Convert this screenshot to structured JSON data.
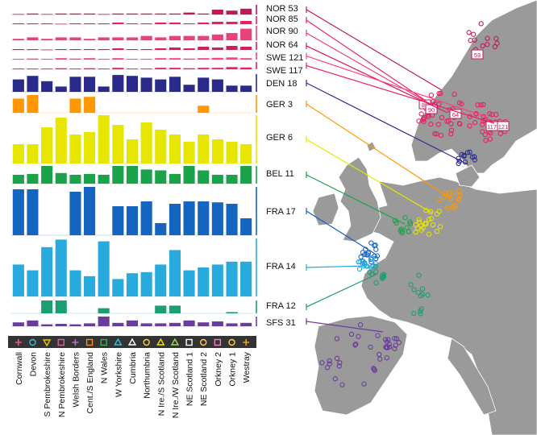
{
  "chart_data": {
    "type": "bar",
    "categories": [
      "Cornwall",
      "Devon",
      "S Pembrokeshire",
      "N Pembrokeshire",
      "Welsh Borders",
      "Cent./S England",
      "N Wales",
      "W Yorkshire",
      "Cumbria",
      "Northumbria",
      "N Ire./S Scotland",
      "N Ire./W Scotland",
      "NE Scotland 1",
      "NE Scotland 2",
      "Orkney 2",
      "Orkney 1",
      "Westray"
    ],
    "region_markers": [
      {
        "symbol": "+",
        "color": "#e0609a"
      },
      {
        "symbol": "o",
        "color": "#2ec4e0"
      },
      {
        "symbol": "▽",
        "color": "#f2c400"
      },
      {
        "symbol": "□",
        "color": "#e0609a"
      },
      {
        "symbol": "+",
        "color": "#b56fd6"
      },
      {
        "symbol": "□",
        "color": "#ff8c1a"
      },
      {
        "symbol": "□",
        "color": "#35b24a"
      },
      {
        "symbol": "△",
        "color": "#2ec4e0"
      },
      {
        "symbol": "△",
        "color": "#ffffff"
      },
      {
        "symbol": "o",
        "color": "#ffd24d"
      },
      {
        "symbol": "△",
        "color": "#ffe000"
      },
      {
        "symbol": "△",
        "color": "#9be04a"
      },
      {
        "symbol": "□",
        "color": "#ffffff"
      },
      {
        "symbol": "o",
        "color": "#ffd24d"
      },
      {
        "symbol": "□",
        "color": "#ff7ac8"
      },
      {
        "symbol": "o",
        "color": "#ffd24d"
      },
      {
        "symbol": "+",
        "color": "#ff9a1a"
      }
    ],
    "series": [
      {
        "name": "NOR 53",
        "color": "#c2185b",
        "values": [
          0.05,
          0.1,
          0.05,
          0.1,
          0.1,
          0.1,
          0.05,
          0.1,
          0.1,
          0.1,
          0.1,
          0.1,
          0.2,
          0.1,
          0.5,
          0.4,
          0.6
        ]
      },
      {
        "name": "NOR 85",
        "color": "#e91e63",
        "values": [
          0.1,
          0.1,
          0.1,
          0.05,
          0.1,
          0.1,
          0.1,
          0.2,
          0.1,
          0.1,
          0.2,
          0.2,
          0.1,
          0.2,
          0.3,
          0.3,
          0.4
        ]
      },
      {
        "name": "NOR 90",
        "color": "#ec407a",
        "values": [
          0.1,
          0.2,
          0.1,
          0.2,
          0.2,
          0.1,
          0.2,
          0.2,
          0.2,
          0.3,
          0.2,
          0.3,
          0.3,
          0.3,
          0.4,
          0.5,
          0.8
        ]
      },
      {
        "name": "NOR 64",
        "color": "#d81b60",
        "values": [
          0.1,
          0.1,
          0.05,
          0.1,
          0.1,
          0.1,
          0.1,
          0.2,
          0.1,
          0.1,
          0.2,
          0.3,
          0.2,
          0.4,
          0.3,
          0.5,
          0.4
        ]
      },
      {
        "name": "SWE 121",
        "color": "#ff4081",
        "values": [
          0.1,
          0.15,
          0.1,
          0.2,
          0.15,
          0.2,
          0.1,
          0.2,
          0.1,
          0.1,
          0.2,
          0.2,
          0.15,
          0.2,
          0.25,
          0.3,
          0.2
        ]
      },
      {
        "name": "SWE 117",
        "color": "#e91e63",
        "values": [
          0.1,
          0.1,
          0.1,
          0.15,
          0.1,
          0.15,
          0.1,
          0.2,
          0.1,
          0.1,
          0.2,
          0.2,
          0.15,
          0.2,
          0.2,
          0.3,
          0.25
        ]
      },
      {
        "name": "DEN 18",
        "color": "#2a2a8c",
        "values": [
          0.7,
          0.9,
          0.6,
          0.3,
          0.85,
          0.85,
          0.3,
          0.95,
          0.9,
          0.8,
          0.7,
          0.85,
          0.4,
          0.8,
          0.7,
          0.35,
          0.35
        ]
      },
      {
        "name": "GER 3",
        "color": "#ff9800",
        "values": [
          0.8,
          1.0,
          0,
          0,
          0.8,
          0.9,
          0,
          0,
          0,
          0,
          0,
          0,
          0,
          0.4,
          0,
          0,
          0
        ]
      },
      {
        "name": "GER 6",
        "color": "#e6e600",
        "values": [
          0.4,
          0.4,
          0.75,
          0.95,
          0.6,
          0.65,
          1.0,
          0.8,
          0.5,
          0.85,
          0.7,
          0.6,
          0.45,
          0.6,
          0.5,
          0.45,
          0.4
        ]
      },
      {
        "name": "BEL 11",
        "color": "#1aa34a",
        "values": [
          0.5,
          0.55,
          1.0,
          0.6,
          0.5,
          0.55,
          0.5,
          1.0,
          1.0,
          0.8,
          0.75,
          0.55,
          1.0,
          0.75,
          0.5,
          0.5,
          1.0
        ]
      },
      {
        "name": "FRA 17",
        "color": "#1565c0",
        "values": [
          0.95,
          0.95,
          0,
          0,
          0.9,
          1.0,
          0,
          0.6,
          0.6,
          0.7,
          0.25,
          0.65,
          0.7,
          0.7,
          0.68,
          0.65,
          0.35
        ]
      },
      {
        "name": "FRA 14",
        "color": "#29aadc",
        "values": [
          0.55,
          0.45,
          0.85,
          0.98,
          0.45,
          0.35,
          0.95,
          0.3,
          0.4,
          0.42,
          0.55,
          0.8,
          0.45,
          0.5,
          0.55,
          0.6,
          0.6
        ]
      },
      {
        "name": "FRA 12",
        "color": "#1a9e72",
        "values": [
          0,
          0,
          1.0,
          1.0,
          0,
          0,
          0.4,
          0,
          0,
          0,
          0.6,
          0.6,
          0,
          0,
          0,
          0.1,
          0
        ]
      },
      {
        "name": "SFS 31",
        "color": "#6a3d9a",
        "values": [
          0.4,
          0.6,
          0.2,
          0.25,
          0.2,
          0.3,
          1.0,
          0.35,
          0.6,
          0.3,
          0.3,
          0.35,
          0.6,
          0.4,
          0.5,
          0.3,
          0.35
        ]
      }
    ],
    "map_point_labels": [
      "53",
      "85",
      "90",
      "64",
      "117",
      "121"
    ]
  }
}
